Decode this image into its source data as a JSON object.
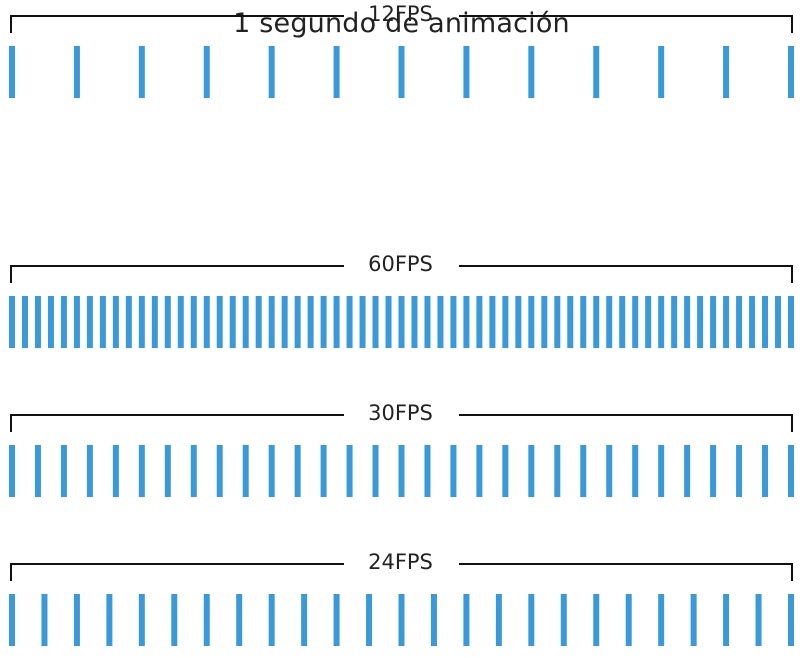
{
  "title": "1 segundo de animación",
  "colors": {
    "frame": "#3a9ad9",
    "bracket": "#111111",
    "text": "#222222",
    "background": "#ffffff"
  },
  "rows": [
    {
      "label": "60FPS",
      "fps": 60
    },
    {
      "label": "30FPS",
      "fps": 30
    },
    {
      "label": "24FPS",
      "fps": 24
    },
    {
      "label": "12FPS",
      "fps": 12
    }
  ]
}
